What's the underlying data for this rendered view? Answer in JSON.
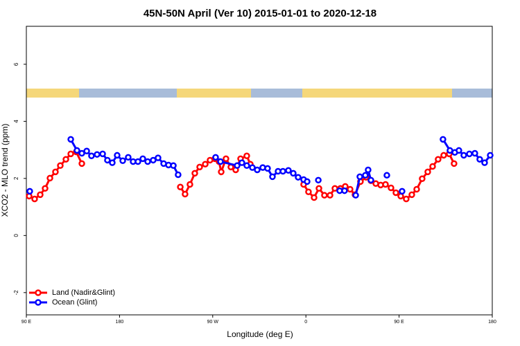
{
  "chart_data": {
    "type": "line",
    "title": "45N-50N April (Ver 10)   2015-01-01 to 2020-12-18",
    "x_label": "Longitude (deg E)",
    "y_label": "XCO2 - MLO trend (ppm)",
    "xlim": [
      90,
      540
    ],
    "ylim": [
      -2.78,
      7.33
    ],
    "xticks": [
      {
        "value": 90,
        "label": "90 E"
      },
      {
        "value": 180,
        "label": "180"
      },
      {
        "value": 270,
        "label": "90 W"
      },
      {
        "value": 360,
        "label": "0"
      },
      {
        "value": 450,
        "label": "90 E"
      },
      {
        "value": 540,
        "label": "180"
      }
    ],
    "yticks": [
      -2,
      0,
      2,
      4,
      6
    ],
    "legend": "bottom-left",
    "series": [
      {
        "name": "Land (Nadir&Glint)",
        "color": "#ff0000",
        "x": [
          92.7,
          98.0,
          103.4,
          108.1,
          112.8,
          118.1,
          122.8,
          128.2,
          132.9,
          138.2,
          143.6,
          null,
          238.7,
          243.3,
          248.0,
          252.7,
          257.4,
          262.8,
          267.4,
          272.1,
          276.1,
          278.2,
          282.8,
          287.5,
          292.2,
          296.9,
          302.9,
          306.3,
          null,
          357.8,
          362.5,
          367.9,
          372.6,
          377.9,
          383.3,
          388.0,
          393.3,
          398.0,
          402.7,
          407.4,
          412.7,
          418.1,
          422.8,
          427.5,
          432.2,
          436.9,
          442.2,
          446.9,
          451.6,
          456.9,
          462.3,
          467.0,
          472.3,
          477.7,
          482.4,
          487.7,
          493.1,
          498.4,
          503.1
        ],
        "values": [
          1.38,
          1.28,
          1.43,
          1.65,
          2.01,
          2.23,
          2.45,
          2.67,
          2.86,
          2.93,
          2.52,
          null,
          1.7,
          1.45,
          1.79,
          2.18,
          2.4,
          2.5,
          2.64,
          2.69,
          2.59,
          2.23,
          2.69,
          2.4,
          2.3,
          2.69,
          2.79,
          2.5,
          null,
          1.79,
          1.53,
          1.33,
          1.65,
          1.41,
          1.41,
          1.65,
          1.65,
          1.72,
          1.62,
          1.43,
          1.89,
          2.04,
          1.92,
          1.82,
          1.77,
          1.79,
          1.67,
          1.5,
          1.38,
          1.28,
          1.43,
          1.62,
          1.99,
          2.23,
          2.42,
          2.67,
          2.81,
          2.86,
          2.52
        ]
      },
      {
        "name": "Ocean (Glint)",
        "color": "#0000ff",
        "x": [
          93.3,
          null,
          132.9,
          138.9,
          143.6,
          148.3,
          152.9,
          158.3,
          163.7,
          168.3,
          173.0,
          177.7,
          183.1,
          188.4,
          193.1,
          197.8,
          202.5,
          207.2,
          212.5,
          217.2,
          222.6,
          227.3,
          232.0,
          236.6,
          null,
          272.8,
          277.5,
          293.6,
          298.2,
          302.9,
          308.3,
          313.0,
          318.3,
          323.0,
          327.7,
          333.1,
          337.8,
          343.1,
          347.8,
          352.5,
          357.8,
          361.2,
          null,
          372.0,
          null,
          392.6,
          397.3,
          null,
          408.1,
          412.1,
          417.4,
          420.1,
          422.8,
          null,
          438.2,
          null,
          452.9,
          null,
          492.4,
          499.1,
          503.8,
          507.8,
          512.5,
          517.9,
          523.2,
          527.9,
          532.6,
          538.0
        ],
        "values": [
          1.55,
          null,
          3.37,
          2.98,
          2.88,
          2.96,
          2.79,
          2.84,
          2.86,
          2.64,
          2.55,
          2.81,
          2.62,
          2.74,
          2.59,
          2.59,
          2.69,
          2.59,
          2.64,
          2.72,
          2.52,
          2.47,
          2.45,
          2.13,
          null,
          2.74,
          2.59,
          2.45,
          2.55,
          2.45,
          2.38,
          2.3,
          2.38,
          2.35,
          2.06,
          2.25,
          2.25,
          2.28,
          2.18,
          2.04,
          1.96,
          1.89,
          null,
          1.94,
          null,
          1.57,
          1.57,
          null,
          1.41,
          2.06,
          2.11,
          2.3,
          1.94,
          null,
          2.11,
          null,
          1.55,
          null,
          3.37,
          2.98,
          2.91,
          2.98,
          2.81,
          2.86,
          2.88,
          2.67,
          2.55,
          2.81
        ]
      }
    ]
  }
}
